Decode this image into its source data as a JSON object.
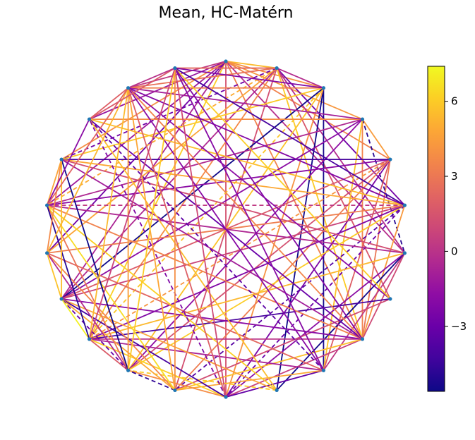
{
  "title": "Mean, HC-Matérn",
  "colorbar": {
    "colormap": "plasma",
    "min": -5.6,
    "max": 7.4,
    "ticks": [
      6,
      3,
      0,
      -3
    ],
    "tick_labels": [
      "6",
      "3",
      "0",
      "−3"
    ]
  },
  "graph": {
    "layout": "circular",
    "node_count": 22,
    "node_color": "#1f77b4",
    "edge_styles": [
      "solid",
      "dashed"
    ]
  }
}
